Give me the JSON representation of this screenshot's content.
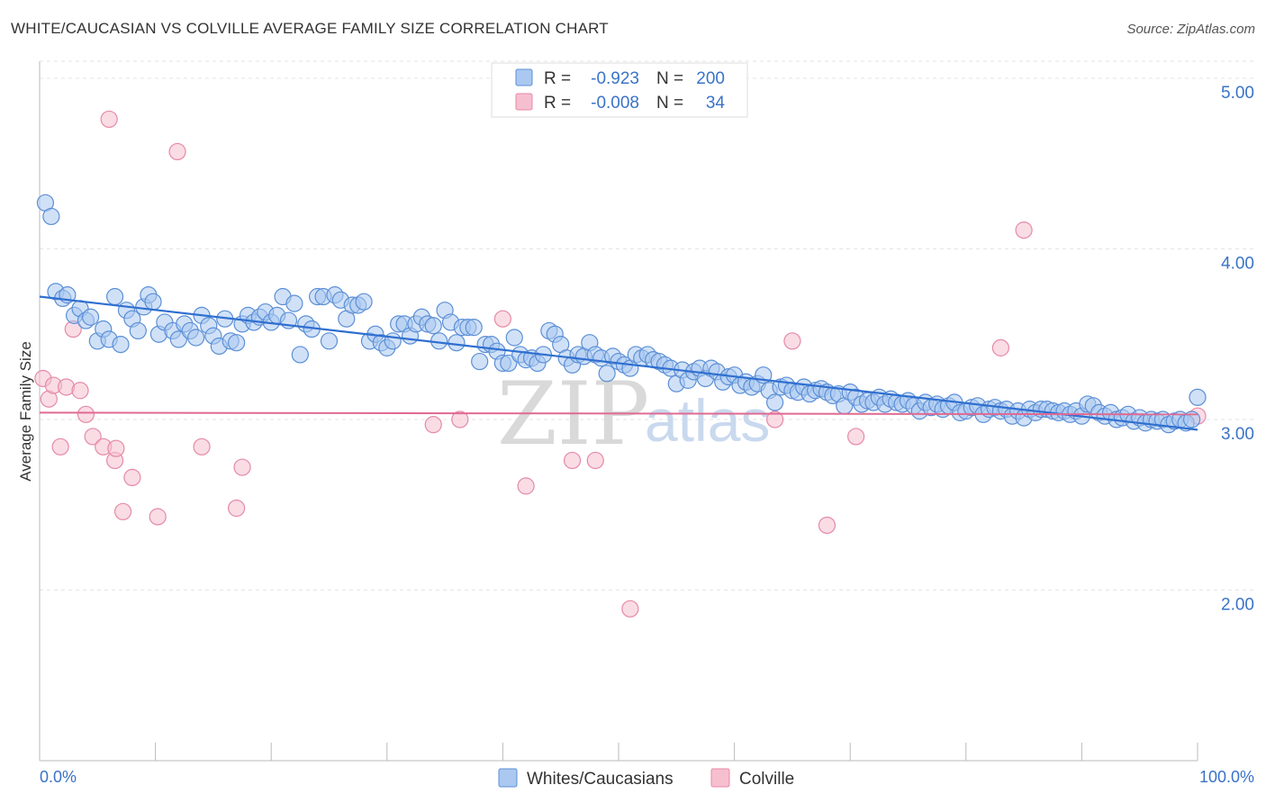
{
  "title": "WHITE/CAUCASIAN VS COLVILLE AVERAGE FAMILY SIZE CORRELATION CHART",
  "source": "Source: ZipAtlas.com",
  "watermark": {
    "zip": "ZIP",
    "atlas": "atlas"
  },
  "colors": {
    "blue_fill": "#aac8f0",
    "blue_stroke": "#5b8fd6",
    "blue_line": "#2f6fd0",
    "pink_fill": "#f6bfd0",
    "pink_stroke": "#e58aa8",
    "pink_line": "#e06a92",
    "tick_text": "#3a73c8"
  },
  "legend": {
    "rows": [
      {
        "r_label": "R =",
        "r_value": "-0.923",
        "n_label": "N =",
        "n_value": "200"
      },
      {
        "r_label": "R =",
        "r_value": "-0.008",
        "n_label": "N =",
        "n_value": "34"
      }
    ]
  },
  "bottom_legend": [
    "Whites/Caucasians",
    "Colville"
  ],
  "chart_data": {
    "type": "scatter",
    "ylabel": "Average Family Size",
    "xlabel": "",
    "x_tick_labels": [
      "0.0%",
      "100.0%"
    ],
    "y_tick_labels": [
      "2.00",
      "3.00",
      "4.00",
      "5.00"
    ],
    "y_ticks": [
      2.0,
      3.0,
      4.0,
      5.0
    ],
    "xlim": [
      0,
      100
    ],
    "ylim": [
      1.0,
      5.1
    ],
    "grid": true,
    "legend_position": "top-center",
    "series": [
      {
        "name": "Whites/Caucasians",
        "trend": {
          "x": [
            0,
            100
          ],
          "y": [
            3.72,
            2.94
          ]
        },
        "points": [
          [
            0.5,
            4.27
          ],
          [
            1,
            4.19
          ],
          [
            1.4,
            3.75
          ],
          [
            2,
            3.71
          ],
          [
            2.4,
            3.73
          ],
          [
            3,
            3.61
          ],
          [
            3.5,
            3.65
          ],
          [
            4,
            3.58
          ],
          [
            4.4,
            3.6
          ],
          [
            5,
            3.46
          ],
          [
            5.5,
            3.53
          ],
          [
            6,
            3.47
          ],
          [
            6.5,
            3.72
          ],
          [
            7,
            3.44
          ],
          [
            7.5,
            3.64
          ],
          [
            8,
            3.59
          ],
          [
            8.5,
            3.52
          ],
          [
            9,
            3.66
          ],
          [
            9.4,
            3.73
          ],
          [
            9.8,
            3.69
          ],
          [
            10.3,
            3.5
          ],
          [
            10.8,
            3.57
          ],
          [
            11.5,
            3.52
          ],
          [
            12,
            3.47
          ],
          [
            12.5,
            3.56
          ],
          [
            13,
            3.52
          ],
          [
            13.5,
            3.48
          ],
          [
            14,
            3.61
          ],
          [
            14.6,
            3.55
          ],
          [
            15,
            3.49
          ],
          [
            15.5,
            3.43
          ],
          [
            16,
            3.59
          ],
          [
            16.5,
            3.46
          ],
          [
            17,
            3.45
          ],
          [
            17.5,
            3.56
          ],
          [
            18,
            3.61
          ],
          [
            18.5,
            3.57
          ],
          [
            19,
            3.6
          ],
          [
            19.5,
            3.63
          ],
          [
            20,
            3.57
          ],
          [
            20.5,
            3.61
          ],
          [
            21,
            3.72
          ],
          [
            21.5,
            3.58
          ],
          [
            22,
            3.68
          ],
          [
            22.5,
            3.38
          ],
          [
            23,
            3.56
          ],
          [
            23.5,
            3.53
          ],
          [
            24,
            3.72
          ],
          [
            24.5,
            3.72
          ],
          [
            25,
            3.46
          ],
          [
            25.5,
            3.73
          ],
          [
            26,
            3.7
          ],
          [
            26.5,
            3.59
          ],
          [
            27,
            3.67
          ],
          [
            27.5,
            3.67
          ],
          [
            28,
            3.69
          ],
          [
            28.5,
            3.46
          ],
          [
            29,
            3.5
          ],
          [
            29.5,
            3.45
          ],
          [
            30,
            3.42
          ],
          [
            30.5,
            3.46
          ],
          [
            31,
            3.56
          ],
          [
            31.5,
            3.56
          ],
          [
            32,
            3.49
          ],
          [
            32.5,
            3.56
          ],
          [
            33,
            3.6
          ],
          [
            33.5,
            3.56
          ],
          [
            34,
            3.55
          ],
          [
            34.5,
            3.46
          ],
          [
            35,
            3.64
          ],
          [
            35.5,
            3.57
          ],
          [
            36,
            3.45
          ],
          [
            36.5,
            3.54
          ],
          [
            37,
            3.54
          ],
          [
            37.5,
            3.54
          ],
          [
            38,
            3.34
          ],
          [
            38.5,
            3.44
          ],
          [
            39,
            3.44
          ],
          [
            39.5,
            3.4
          ],
          [
            40,
            3.33
          ],
          [
            40.5,
            3.33
          ],
          [
            41,
            3.48
          ],
          [
            41.5,
            3.38
          ],
          [
            42,
            3.35
          ],
          [
            42.5,
            3.36
          ],
          [
            43,
            3.33
          ],
          [
            43.5,
            3.38
          ],
          [
            44,
            3.52
          ],
          [
            44.5,
            3.5
          ],
          [
            45,
            3.44
          ],
          [
            45.5,
            3.36
          ],
          [
            46,
            3.32
          ],
          [
            46.5,
            3.38
          ],
          [
            47,
            3.37
          ],
          [
            47.5,
            3.45
          ],
          [
            48,
            3.38
          ],
          [
            48.5,
            3.36
          ],
          [
            49,
            3.27
          ],
          [
            49.5,
            3.37
          ],
          [
            50,
            3.34
          ],
          [
            50.5,
            3.32
          ],
          [
            51,
            3.3
          ],
          [
            51.5,
            3.38
          ],
          [
            52,
            3.36
          ],
          [
            52.5,
            3.38
          ],
          [
            53,
            3.35
          ],
          [
            53.5,
            3.34
          ],
          [
            54,
            3.32
          ],
          [
            54.5,
            3.3
          ],
          [
            55,
            3.21
          ],
          [
            55.5,
            3.29
          ],
          [
            56,
            3.23
          ],
          [
            56.5,
            3.28
          ],
          [
            57,
            3.3
          ],
          [
            57.5,
            3.24
          ],
          [
            58,
            3.3
          ],
          [
            58.5,
            3.28
          ],
          [
            59,
            3.22
          ],
          [
            59.5,
            3.25
          ],
          [
            60,
            3.26
          ],
          [
            60.5,
            3.2
          ],
          [
            61,
            3.22
          ],
          [
            61.5,
            3.19
          ],
          [
            62,
            3.21
          ],
          [
            62.5,
            3.26
          ],
          [
            63,
            3.17
          ],
          [
            63.5,
            3.1
          ],
          [
            64,
            3.19
          ],
          [
            64.5,
            3.2
          ],
          [
            65,
            3.17
          ],
          [
            65.5,
            3.16
          ],
          [
            66,
            3.19
          ],
          [
            66.5,
            3.15
          ],
          [
            67,
            3.17
          ],
          [
            67.5,
            3.18
          ],
          [
            68,
            3.16
          ],
          [
            68.5,
            3.14
          ],
          [
            69,
            3.15
          ],
          [
            69.5,
            3.08
          ],
          [
            70,
            3.16
          ],
          [
            70.5,
            3.13
          ],
          [
            71,
            3.09
          ],
          [
            71.5,
            3.11
          ],
          [
            72,
            3.1
          ],
          [
            72.5,
            3.13
          ],
          [
            73,
            3.09
          ],
          [
            73.5,
            3.12
          ],
          [
            74,
            3.1
          ],
          [
            74.5,
            3.09
          ],
          [
            75,
            3.11
          ],
          [
            75.5,
            3.08
          ],
          [
            76,
            3.05
          ],
          [
            76.5,
            3.1
          ],
          [
            77,
            3.07
          ],
          [
            77.5,
            3.09
          ],
          [
            78,
            3.06
          ],
          [
            78.5,
            3.08
          ],
          [
            79,
            3.1
          ],
          [
            79.5,
            3.04
          ],
          [
            80,
            3.05
          ],
          [
            80.5,
            3.07
          ],
          [
            81,
            3.08
          ],
          [
            81.5,
            3.03
          ],
          [
            82,
            3.06
          ],
          [
            82.5,
            3.07
          ],
          [
            83,
            3.05
          ],
          [
            83.5,
            3.06
          ],
          [
            84,
            3.02
          ],
          [
            84.5,
            3.05
          ],
          [
            85,
            3.01
          ],
          [
            85.5,
            3.06
          ],
          [
            86,
            3.04
          ],
          [
            86.5,
            3.06
          ],
          [
            87,
            3.06
          ],
          [
            87.5,
            3.05
          ],
          [
            88,
            3.04
          ],
          [
            88.5,
            3.05
          ],
          [
            89,
            3.03
          ],
          [
            89.5,
            3.05
          ],
          [
            90,
            3.02
          ],
          [
            90.5,
            3.09
          ],
          [
            91,
            3.08
          ],
          [
            91.5,
            3.04
          ],
          [
            92,
            3.02
          ],
          [
            92.5,
            3.04
          ],
          [
            93,
            3.0
          ],
          [
            93.5,
            3.01
          ],
          [
            94,
            3.03
          ],
          [
            94.5,
            2.99
          ],
          [
            95,
            3.01
          ],
          [
            95.5,
            2.98
          ],
          [
            96,
            3.0
          ],
          [
            96.5,
            2.99
          ],
          [
            97,
            3.0
          ],
          [
            97.5,
            2.97
          ],
          [
            98,
            2.99
          ],
          [
            98.5,
            3.0
          ],
          [
            99,
            2.98
          ],
          [
            99.5,
            3.0
          ],
          [
            100,
            3.13
          ]
        ]
      },
      {
        "name": "Colville",
        "trend": {
          "x": [
            0,
            100
          ],
          "y": [
            3.04,
            3.03
          ]
        },
        "points": [
          [
            0.3,
            3.24
          ],
          [
            0.8,
            3.12
          ],
          [
            1.2,
            3.2
          ],
          [
            1.8,
            2.84
          ],
          [
            2.3,
            3.19
          ],
          [
            2.9,
            3.53
          ],
          [
            3.5,
            3.17
          ],
          [
            4,
            3.03
          ],
          [
            4.6,
            2.9
          ],
          [
            5.5,
            2.84
          ],
          [
            6,
            4.76
          ],
          [
            6.5,
            2.76
          ],
          [
            6.6,
            2.83
          ],
          [
            7.2,
            2.46
          ],
          [
            8,
            2.66
          ],
          [
            10.2,
            2.43
          ],
          [
            11.9,
            4.57
          ],
          [
            14,
            2.84
          ],
          [
            17,
            2.48
          ],
          [
            17.5,
            2.72
          ],
          [
            34,
            2.97
          ],
          [
            36.3,
            3.0
          ],
          [
            40,
            3.59
          ],
          [
            42,
            2.61
          ],
          [
            46,
            2.76
          ],
          [
            48,
            2.76
          ],
          [
            51,
            1.89
          ],
          [
            63.5,
            3.0
          ],
          [
            65,
            3.46
          ],
          [
            68,
            2.38
          ],
          [
            70.5,
            2.9
          ],
          [
            83,
            3.42
          ],
          [
            85,
            4.11
          ],
          [
            100,
            3.02
          ]
        ]
      }
    ]
  }
}
